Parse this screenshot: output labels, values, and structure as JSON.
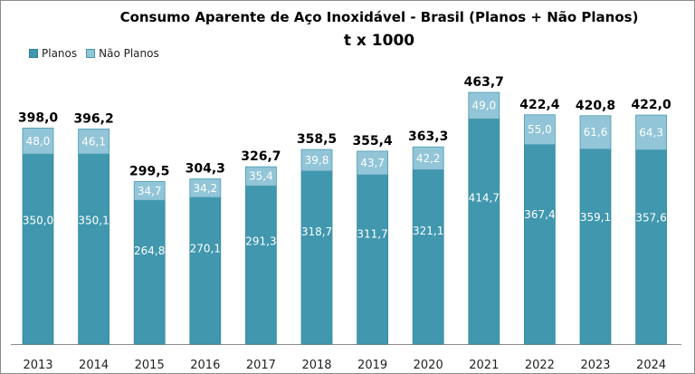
{
  "chart_data": {
    "type": "bar",
    "stacked": true,
    "title": "Consumo Aparente de Aço Inoxidável - Brasil  (Planos + Não Planos)",
    "subtitle": "t x 1000",
    "xlabel": "",
    "ylabel": "",
    "ylim": [
      0,
      470
    ],
    "grid": false,
    "legend_position": "top-left",
    "categories": [
      "2013",
      "2014",
      "2015",
      "2016",
      "2017",
      "2018",
      "2019",
      "2020",
      "2021",
      "2022",
      "2023",
      "2024"
    ],
    "series": [
      {
        "name": "Planos",
        "color": "#4097ae",
        "values": [
          350.0,
          350.1,
          264.8,
          270.1,
          291.3,
          318.7,
          311.7,
          321.1,
          414.7,
          367.4,
          359.1,
          357.6
        ],
        "labels": [
          "350,0",
          "350,1",
          "264,8",
          "270,1",
          "291,3",
          "318,7",
          "311,7",
          "321,1",
          "414,7",
          "367,4",
          "359,1",
          "357,6"
        ]
      },
      {
        "name": "Não Planos",
        "color": "#92c5d7",
        "values": [
          48.0,
          46.1,
          34.7,
          34.2,
          35.4,
          39.8,
          43.7,
          42.2,
          49.0,
          55.0,
          61.6,
          64.3
        ],
        "labels": [
          "48,0",
          "46,1",
          "34,7",
          "34,2",
          "35,4",
          "39,8",
          "43,7",
          "42,2",
          "49,0",
          "55,0",
          "61,6",
          "64,3"
        ]
      }
    ],
    "totals": [
      398.0,
      396.2,
      299.5,
      304.3,
      326.7,
      358.5,
      355.4,
      363.3,
      463.7,
      422.4,
      420.8,
      422.0
    ],
    "total_labels": [
      "398,0",
      "396,2",
      "299,5",
      "304,3",
      "326,7",
      "358,5",
      "355,4",
      "363,3",
      "463,7",
      "422,4",
      "420,8",
      "422,0"
    ]
  }
}
